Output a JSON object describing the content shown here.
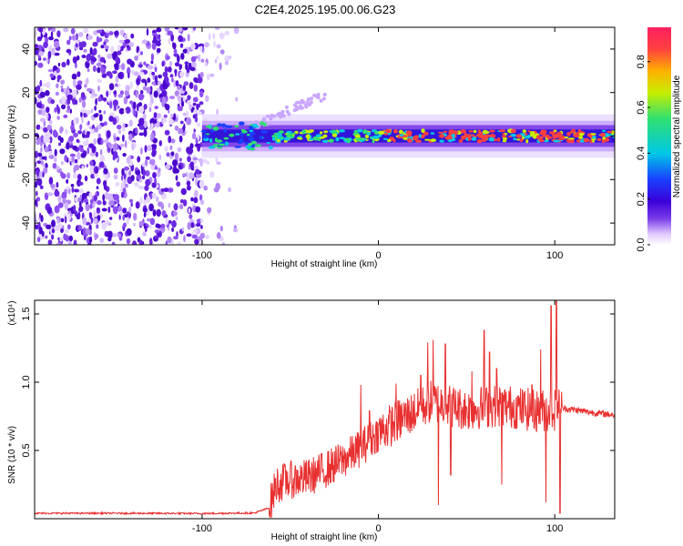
{
  "title": "C2E4.2025.195.00.06.G23",
  "chart_data": [
    {
      "type": "heatmap",
      "xlabel": "Height of straight line (km)",
      "ylabel": "Frequency (Hz)",
      "xlim": [
        -195,
        134
      ],
      "ylim": [
        -50,
        50
      ],
      "x_ticks": [
        -100,
        0,
        100
      ],
      "y_ticks": [
        -40,
        -20,
        0,
        20,
        40
      ],
      "grid": false,
      "colorbar": {
        "label": "Normalized spectral amplitude",
        "range": [
          0,
          0.95
        ],
        "ticks": [
          0.0,
          0.2,
          0.4,
          0.6,
          0.8
        ],
        "tick_labels": [
          "0.0",
          "0.2",
          "0.4",
          "0.6",
          "0.8"
        ],
        "colormap": [
          "#ffffff",
          "#e0c8ff",
          "#7a3ce6",
          "#3b00d9",
          "#1a40ff",
          "#00c8e6",
          "#30e070",
          "#c8ee00",
          "#ffb000",
          "#ff4040",
          "#ff2060"
        ]
      },
      "noise_region_x": [
        -195,
        -80
      ],
      "band_center_hz": 0
    },
    {
      "type": "line",
      "xlabel": "Height of straight line (km)",
      "ylabel": "SNR (10 * v/v)",
      "y_multiplier": "(x10⁴)",
      "xlim": [
        -195,
        134
      ],
      "ylim": [
        0,
        16000
      ],
      "x_ticks": [
        -100,
        0,
        100
      ],
      "x_tick_labels": [
        "-100",
        "0",
        "100"
      ],
      "y_ticks": [
        5000,
        10000,
        15000
      ],
      "y_tick_labels": [
        "0.5",
        "1.0",
        "1.5"
      ],
      "grid": false,
      "series": [
        {
          "color": "#e83030",
          "points": [
            [
              -195,
              400
            ],
            [
              -150,
              400
            ],
            [
              -100,
              380
            ],
            [
              -70,
              420
            ],
            [
              -62,
              800
            ],
            [
              -58,
              2500
            ],
            [
              -52,
              2800
            ],
            [
              -40,
              3000
            ],
            [
              -30,
              3600
            ],
            [
              -20,
              4300
            ],
            [
              -10,
              5200
            ],
            [
              0,
              6300
            ],
            [
              10,
              7100
            ],
            [
              20,
              7800
            ],
            [
              30,
              8600
            ],
            [
              40,
              8300
            ],
            [
              50,
              8000
            ],
            [
              60,
              8200
            ],
            [
              70,
              8300
            ],
            [
              80,
              8100
            ],
            [
              90,
              7900
            ],
            [
              100,
              8000
            ],
            [
              104,
              8100
            ],
            [
              110,
              8000
            ],
            [
              120,
              7800
            ],
            [
              134,
              7600
            ]
          ],
          "spikes": [
            [
              -10,
              9800
            ],
            [
              -5,
              7900
            ],
            [
              10,
              9900
            ],
            [
              24,
              10500
            ],
            [
              28,
              12900
            ],
            [
              31,
              13100
            ],
            [
              34,
              1000
            ],
            [
              38,
              12800
            ],
            [
              41,
              3200
            ],
            [
              53,
              10800
            ],
            [
              60,
              13800
            ],
            [
              63,
              12200
            ],
            [
              67,
              11000
            ],
            [
              70,
              2500
            ],
            [
              87,
              9800
            ],
            [
              92,
              12400
            ],
            [
              95,
              1200
            ],
            [
              98,
              15600
            ],
            [
              101,
              16500
            ],
            [
              103,
              400
            ]
          ]
        }
      ]
    }
  ]
}
